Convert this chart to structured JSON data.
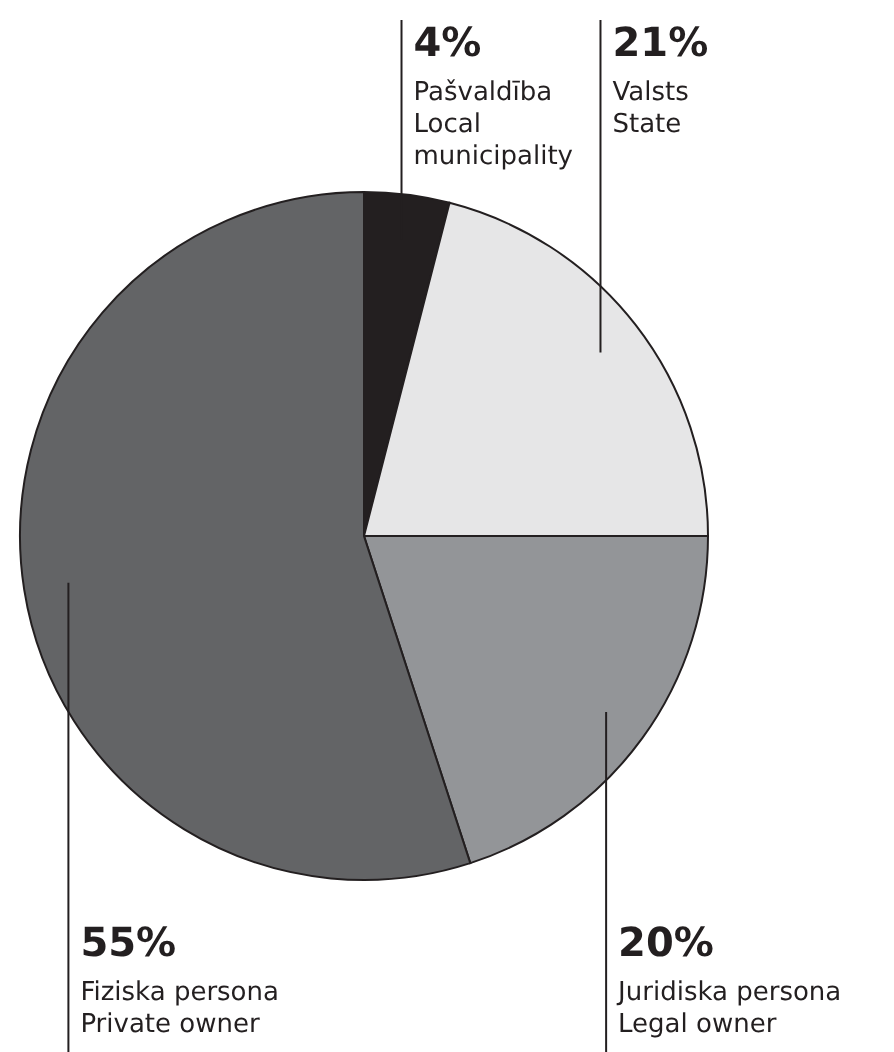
{
  "chart_data": {
    "type": "pie",
    "categories": [
      "Pašvaldība\nLocal\nmunicipality",
      "Valsts\nState",
      "Juridiska persona\nLegal owner",
      "Fiziska persona\nPrivate owner"
    ],
    "values": [
      4,
      21,
      20,
      55
    ],
    "colors": [
      "#231f20",
      "#e6e6e7",
      "#939598",
      "#636466"
    ],
    "value_labels": [
      "4%",
      "21%",
      "20%",
      "55%"
    ]
  }
}
